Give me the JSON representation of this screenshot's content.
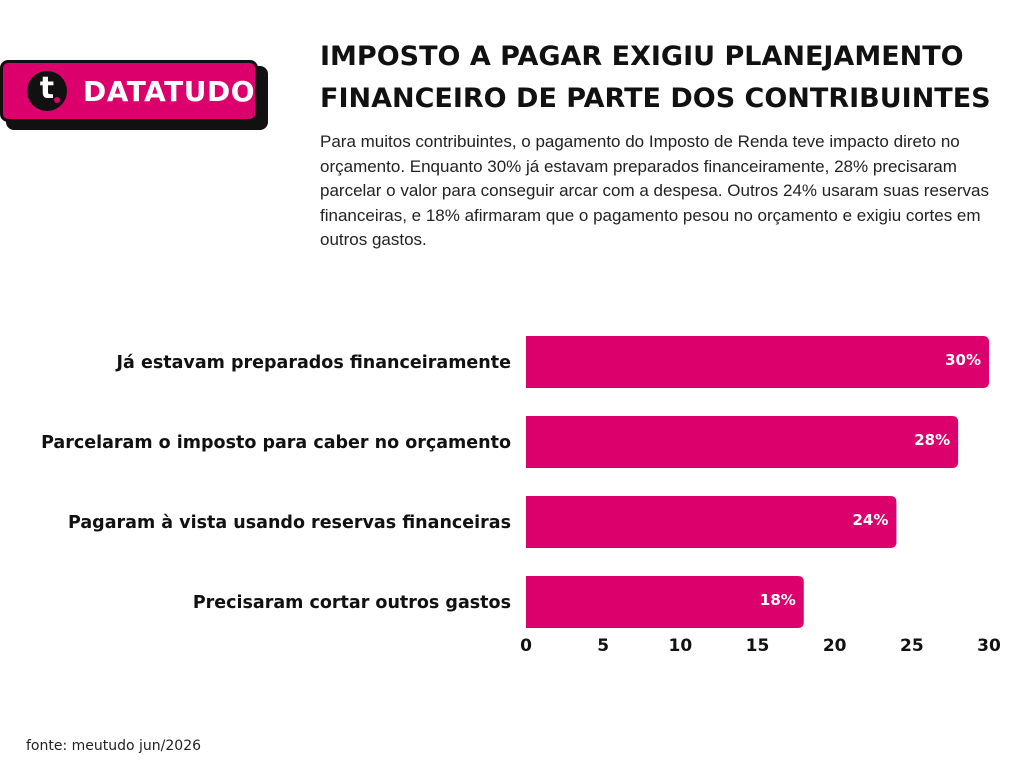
{
  "brand": {
    "initial": "t",
    "name": "DATATUDO",
    "accent_color": "#db006c"
  },
  "title": "IMPOSTO A PAGAR EXIGIU PLANEJAMENTO FINANCEIRO DE PARTE DOS CONTRIBUINTES",
  "subtitle": "Para muitos contribuintes, o pagamento do Imposto de Renda teve impacto direto no orçamento. Enquanto 30% já estavam preparados financeiramente, 28% precisaram parcelar o valor para conseguir arcar com a despesa. Outros 24% usaram suas reservas financeiras, e 18% afirmaram que o pagamento pesou no orçamento e exigiu cortes em outros gastos.",
  "source": "fonte: meutudo jun/2026",
  "chart_data": {
    "type": "bar",
    "orientation": "horizontal",
    "categories": [
      "Já estavam preparados financeiramente",
      "Parcelaram o imposto para caber no orçamento",
      "Pagaram à vista usando reservas financeiras",
      "Precisaram cortar outros gastos"
    ],
    "values": [
      30,
      28,
      24,
      18
    ],
    "data_labels": [
      "30%",
      "28%",
      "24%",
      "18%"
    ],
    "xlim": [
      0,
      30
    ],
    "xticks": [
      "0",
      "5",
      "10",
      "15",
      "20",
      "25",
      "30"
    ],
    "bar_color": "#db006c",
    "grid": false
  }
}
